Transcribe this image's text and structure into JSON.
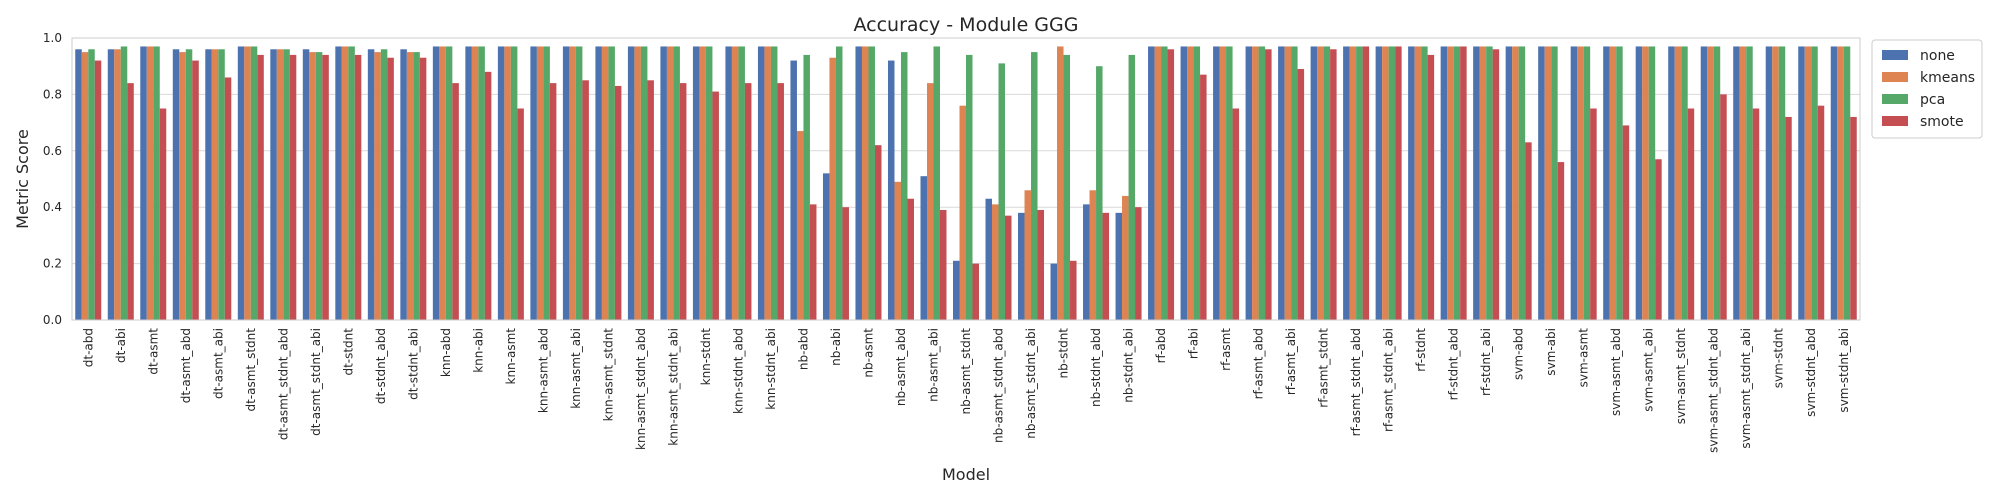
{
  "chart_data": {
    "type": "bar",
    "title": "Accuracy - Module GGG",
    "xlabel": "Model",
    "ylabel": "Metric Score",
    "ylim": [
      0,
      1.0
    ],
    "yticks": [
      0.0,
      0.2,
      0.4,
      0.6,
      0.8,
      1.0
    ],
    "ytick_labels": [
      "0.0",
      "0.2",
      "0.4",
      "0.6",
      "0.8",
      "1.0"
    ],
    "grid": true,
    "legend_position": "outside-top-right",
    "categories": [
      "dt-abd",
      "dt-abi",
      "dt-asmt",
      "dt-asmt_abd",
      "dt-asmt_abi",
      "dt-asmt_stdnt",
      "dt-asmt_stdnt_abd",
      "dt-asmt_stdnt_abi",
      "dt-stdnt",
      "dt-stdnt_abd",
      "dt-stdnt_abi",
      "knn-abd",
      "knn-abi",
      "knn-asmt",
      "knn-asmt_abd",
      "knn-asmt_abi",
      "knn-asmt_stdnt",
      "knn-asmt_stdnt_abd",
      "knn-asmt_stdnt_abi",
      "knn-stdnt",
      "knn-stdnt_abd",
      "knn-stdnt_abi",
      "nb-abd",
      "nb-abi",
      "nb-asmt",
      "nb-asmt_abd",
      "nb-asmt_abi",
      "nb-asmt_stdnt",
      "nb-asmt_stdnt_abd",
      "nb-asmt_stdnt_abi",
      "nb-stdnt",
      "nb-stdnt_abd",
      "nb-stdnt_abi",
      "rf-abd",
      "rf-abi",
      "rf-asmt",
      "rf-asmt_abd",
      "rf-asmt_abi",
      "rf-asmt_stdnt",
      "rf-asmt_stdnt_abd",
      "rf-asmt_stdnt_abi",
      "rf-stdnt",
      "rf-stdnt_abd",
      "rf-stdnt_abi",
      "svm-abd",
      "svm-abi",
      "svm-asmt",
      "svm-asmt_abd",
      "svm-asmt_abi",
      "svm-asmt_stdnt",
      "svm-asmt_stdnt_abd",
      "svm-asmt_stdnt_abi",
      "svm-stdnt",
      "svm-stdnt_abd",
      "svm-stdnt_abi"
    ],
    "series": [
      {
        "name": "none",
        "color": "#4c72b0",
        "values": [
          0.96,
          0.96,
          0.97,
          0.96,
          0.96,
          0.97,
          0.96,
          0.96,
          0.97,
          0.96,
          0.96,
          0.97,
          0.97,
          0.97,
          0.97,
          0.97,
          0.97,
          0.97,
          0.97,
          0.97,
          0.97,
          0.97,
          0.92,
          0.52,
          0.97,
          0.92,
          0.51,
          0.21,
          0.43,
          0.38,
          0.2,
          0.41,
          0.38,
          0.97,
          0.97,
          0.97,
          0.97,
          0.97,
          0.97,
          0.97,
          0.97,
          0.97,
          0.97,
          0.97,
          0.97,
          0.97,
          0.97,
          0.97,
          0.97,
          0.97,
          0.97,
          0.97,
          0.97,
          0.97,
          0.97
        ]
      },
      {
        "name": "kmeans",
        "color": "#dd8452",
        "values": [
          0.95,
          0.96,
          0.97,
          0.95,
          0.96,
          0.97,
          0.96,
          0.95,
          0.97,
          0.95,
          0.95,
          0.97,
          0.97,
          0.97,
          0.97,
          0.97,
          0.97,
          0.97,
          0.97,
          0.97,
          0.97,
          0.97,
          0.67,
          0.93,
          0.97,
          0.49,
          0.84,
          0.76,
          0.41,
          0.46,
          0.97,
          0.46,
          0.44,
          0.97,
          0.97,
          0.97,
          0.97,
          0.97,
          0.97,
          0.97,
          0.97,
          0.97,
          0.97,
          0.97,
          0.97,
          0.97,
          0.97,
          0.97,
          0.97,
          0.97,
          0.97,
          0.97,
          0.97,
          0.97,
          0.97
        ]
      },
      {
        "name": "pca",
        "color": "#55a868",
        "values": [
          0.96,
          0.97,
          0.97,
          0.96,
          0.96,
          0.97,
          0.96,
          0.95,
          0.97,
          0.96,
          0.95,
          0.97,
          0.97,
          0.97,
          0.97,
          0.97,
          0.97,
          0.97,
          0.97,
          0.97,
          0.97,
          0.97,
          0.94,
          0.97,
          0.97,
          0.95,
          0.97,
          0.94,
          0.91,
          0.95,
          0.94,
          0.9,
          0.94,
          0.97,
          0.97,
          0.97,
          0.97,
          0.97,
          0.97,
          0.97,
          0.97,
          0.97,
          0.97,
          0.97,
          0.97,
          0.97,
          0.97,
          0.97,
          0.97,
          0.97,
          0.97,
          0.97,
          0.97,
          0.97,
          0.97
        ]
      },
      {
        "name": "smote",
        "color": "#c44e52",
        "values": [
          0.92,
          0.84,
          0.75,
          0.92,
          0.86,
          0.94,
          0.94,
          0.94,
          0.94,
          0.93,
          0.93,
          0.84,
          0.88,
          0.75,
          0.84,
          0.85,
          0.83,
          0.85,
          0.84,
          0.81,
          0.84,
          0.84,
          0.41,
          0.4,
          0.62,
          0.43,
          0.39,
          0.2,
          0.37,
          0.39,
          0.21,
          0.38,
          0.4,
          0.96,
          0.87,
          0.75,
          0.96,
          0.89,
          0.96,
          0.97,
          0.97,
          0.94,
          0.97,
          0.96,
          0.63,
          0.56,
          0.75,
          0.69,
          0.57,
          0.75,
          0.8,
          0.75,
          0.72,
          0.76,
          0.72
        ]
      }
    ]
  }
}
